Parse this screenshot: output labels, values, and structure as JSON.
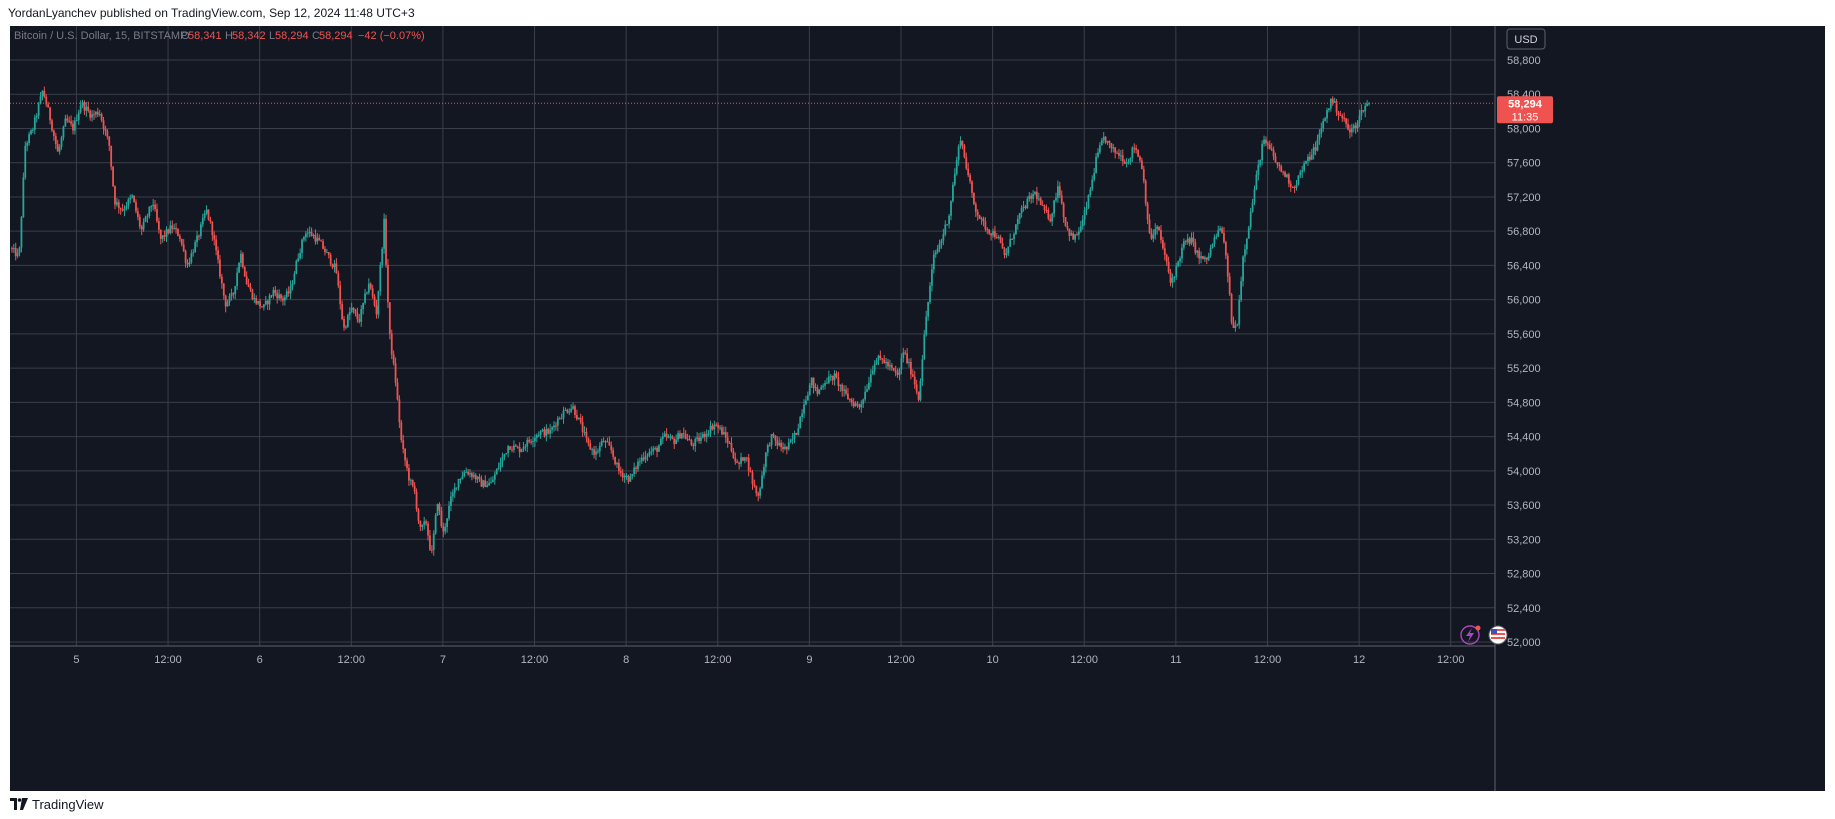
{
  "header": {
    "published_text": "YordanLyanchev published on TradingView.com, Sep 12, 2024 11:48 UTC+3"
  },
  "footer": {
    "brand": "TradingView",
    "logo_icon": "tradingview-logo-icon"
  },
  "chart_data": {
    "type": "candlestick",
    "symbol": "Bitcoin / U.S. Dollar, 15, BITSTAMP",
    "ohlc_legend": {
      "o_label": "O",
      "o_value": "58,341",
      "h_label": "H",
      "h_value": "58,342",
      "l_label": "L",
      "l_value": "58,294",
      "c_label": "C",
      "c_value": "58,294",
      "change": "−42 (−0.07%)"
    },
    "currency": "USD",
    "last_price": 58294,
    "last_price_label": "58,294",
    "countdown": "11:35",
    "y_ticks": [
      58800,
      58400,
      58000,
      57600,
      57200,
      56800,
      56400,
      56000,
      55600,
      55200,
      54800,
      54400,
      54000,
      53600,
      53200,
      52800,
      52400,
      52000
    ],
    "y_tick_labels": [
      "58,800",
      "58,400",
      "58,000",
      "57,600",
      "57,200",
      "56,800",
      "56,400",
      "56,000",
      "55,600",
      "55,200",
      "54,800",
      "54,400",
      "54,000",
      "53,600",
      "53,200",
      "52,800",
      "52,400",
      "52,000"
    ],
    "ylim": [
      51990,
      58800
    ],
    "x_ticks": [
      {
        "t": 24,
        "label": "5"
      },
      {
        "t": 36,
        "label": "12:00"
      },
      {
        "t": 48,
        "label": "6"
      },
      {
        "t": 60,
        "label": "12:00"
      },
      {
        "t": 72,
        "label": "7"
      },
      {
        "t": 84,
        "label": "12:00"
      },
      {
        "t": 96,
        "label": "8"
      },
      {
        "t": 108,
        "label": "12:00"
      },
      {
        "t": 120,
        "label": "9"
      },
      {
        "t": 132,
        "label": "12:00"
      },
      {
        "t": 144,
        "label": "10"
      },
      {
        "t": 156,
        "label": "12:00"
      },
      {
        "t": 168,
        "label": "11"
      },
      {
        "t": 180,
        "label": "12:00"
      },
      {
        "t": 192,
        "label": "12"
      },
      {
        "t": 204,
        "label": "12:00"
      }
    ],
    "x_unit": "hours since Sep 4, 00:00",
    "xlim": [
      15.3,
      209.8
    ],
    "bar_interval_hours": 0.25,
    "colors": {
      "up": "#26a69a",
      "down": "#ef5350",
      "background": "#131722",
      "grid": "#3a3e4b",
      "text": "#b2b5be"
    },
    "price_path": [
      [
        15.3,
        56600
      ],
      [
        16.5,
        56500
      ],
      [
        17.3,
        57800
      ],
      [
        18.3,
        58000
      ],
      [
        19.6,
        58450
      ],
      [
        20.6,
        58100
      ],
      [
        21.6,
        57700
      ],
      [
        22.6,
        58100
      ],
      [
        23.6,
        58000
      ],
      [
        24.6,
        58300
      ],
      [
        26.0,
        58150
      ],
      [
        27.0,
        58200
      ],
      [
        28.3,
        57800
      ],
      [
        29.0,
        57150
      ],
      [
        30.0,
        57050
      ],
      [
        31.3,
        57200
      ],
      [
        32.5,
        56800
      ],
      [
        34.0,
        57150
      ],
      [
        35.0,
        56700
      ],
      [
        36.5,
        56850
      ],
      [
        37.5,
        56750
      ],
      [
        38.5,
        56400
      ],
      [
        40.0,
        56750
      ],
      [
        41.0,
        57050
      ],
      [
        41.8,
        56800
      ],
      [
        42.6,
        56400
      ],
      [
        43.5,
        55950
      ],
      [
        44.5,
        56050
      ],
      [
        45.5,
        56550
      ],
      [
        46.3,
        56200
      ],
      [
        47.3,
        56000
      ],
      [
        48.5,
        55900
      ],
      [
        49.8,
        56100
      ],
      [
        51.0,
        56000
      ],
      [
        52.0,
        56100
      ],
      [
        53.0,
        56500
      ],
      [
        54.0,
        56800
      ],
      [
        55.0,
        56750
      ],
      [
        56.0,
        56650
      ],
      [
        57.0,
        56500
      ],
      [
        58.0,
        56350
      ],
      [
        59.0,
        55650
      ],
      [
        60.0,
        55900
      ],
      [
        61.0,
        55750
      ],
      [
        62.3,
        56200
      ],
      [
        63.3,
        55850
      ],
      [
        64.3,
        56900
      ],
      [
        65.0,
        55600
      ],
      [
        65.8,
        55050
      ],
      [
        66.6,
        54300
      ],
      [
        67.6,
        53900
      ],
      [
        68.3,
        53750
      ],
      [
        69.0,
        53300
      ],
      [
        69.8,
        53400
      ],
      [
        70.5,
        53000
      ],
      [
        71.3,
        53650
      ],
      [
        72.0,
        53250
      ],
      [
        73.0,
        53650
      ],
      [
        74.0,
        53900
      ],
      [
        75.0,
        54000
      ],
      [
        76.0,
        53950
      ],
      [
        77.0,
        53850
      ],
      [
        78.3,
        53850
      ],
      [
        79.3,
        54050
      ],
      [
        80.6,
        54300
      ],
      [
        82.0,
        54250
      ],
      [
        83.3,
        54350
      ],
      [
        84.6,
        54450
      ],
      [
        86.0,
        54450
      ],
      [
        87.0,
        54600
      ],
      [
        88.0,
        54700
      ],
      [
        89.0,
        54750
      ],
      [
        90.0,
        54550
      ],
      [
        91.0,
        54300
      ],
      [
        92.0,
        54200
      ],
      [
        93.0,
        54350
      ],
      [
        94.0,
        54250
      ],
      [
        95.0,
        54000
      ],
      [
        96.5,
        53900
      ],
      [
        97.6,
        54100
      ],
      [
        98.6,
        54200
      ],
      [
        100.0,
        54250
      ],
      [
        101.0,
        54400
      ],
      [
        102.3,
        54350
      ],
      [
        103.3,
        54450
      ],
      [
        104.6,
        54300
      ],
      [
        106.0,
        54400
      ],
      [
        107.6,
        54550
      ],
      [
        108.6,
        54450
      ],
      [
        109.6,
        54300
      ],
      [
        110.6,
        54050
      ],
      [
        111.6,
        54200
      ],
      [
        112.6,
        53850
      ],
      [
        113.3,
        53700
      ],
      [
        114.3,
        54200
      ],
      [
        115.0,
        54400
      ],
      [
        116.0,
        54300
      ],
      [
        117.0,
        54250
      ],
      [
        118.3,
        54450
      ],
      [
        119.3,
        54800
      ],
      [
        120.3,
        55050
      ],
      [
        121.0,
        54900
      ],
      [
        122.0,
        55050
      ],
      [
        123.3,
        55100
      ],
      [
        124.6,
        54900
      ],
      [
        125.6,
        54800
      ],
      [
        126.6,
        54750
      ],
      [
        127.6,
        55000
      ],
      [
        128.6,
        55300
      ],
      [
        129.6,
        55300
      ],
      [
        130.6,
        55200
      ],
      [
        131.6,
        55100
      ],
      [
        132.3,
        55400
      ],
      [
        133.6,
        55100
      ],
      [
        134.3,
        54850
      ],
      [
        135.3,
        55800
      ],
      [
        136.3,
        56500
      ],
      [
        137.3,
        56700
      ],
      [
        138.3,
        57000
      ],
      [
        138.9,
        57400
      ],
      [
        139.8,
        57900
      ],
      [
        140.8,
        57450
      ],
      [
        141.6,
        57100
      ],
      [
        142.6,
        56900
      ],
      [
        143.6,
        56800
      ],
      [
        144.6,
        56750
      ],
      [
        145.6,
        56500
      ],
      [
        146.6,
        56750
      ],
      [
        147.6,
        57000
      ],
      [
        148.6,
        57150
      ],
      [
        149.6,
        57250
      ],
      [
        150.6,
        57050
      ],
      [
        151.6,
        56950
      ],
      [
        152.6,
        57350
      ],
      [
        153.6,
        56850
      ],
      [
        154.6,
        56700
      ],
      [
        155.6,
        56850
      ],
      [
        156.6,
        57200
      ],
      [
        157.6,
        57650
      ],
      [
        158.6,
        57900
      ],
      [
        159.6,
        57750
      ],
      [
        160.6,
        57700
      ],
      [
        161.6,
        57600
      ],
      [
        162.6,
        57800
      ],
      [
        163.6,
        57550
      ],
      [
        164.6,
        56700
      ],
      [
        165.6,
        56850
      ],
      [
        166.6,
        56500
      ],
      [
        167.3,
        56200
      ],
      [
        168.0,
        56350
      ],
      [
        169.0,
        56650
      ],
      [
        170.0,
        56700
      ],
      [
        171.0,
        56500
      ],
      [
        172.0,
        56450
      ],
      [
        173.0,
        56700
      ],
      [
        174.0,
        56850
      ],
      [
        174.8,
        56300
      ],
      [
        175.4,
        55650
      ],
      [
        176.0,
        55700
      ],
      [
        176.8,
        56500
      ],
      [
        177.6,
        56900
      ],
      [
        178.5,
        57400
      ],
      [
        179.4,
        57850
      ],
      [
        180.4,
        57750
      ],
      [
        181.4,
        57550
      ],
      [
        182.4,
        57450
      ],
      [
        183.4,
        57300
      ],
      [
        184.4,
        57500
      ],
      [
        185.4,
        57650
      ],
      [
        186.4,
        57800
      ],
      [
        187.4,
        58100
      ],
      [
        188.4,
        58350
      ],
      [
        189.2,
        58200
      ],
      [
        190.0,
        58100
      ],
      [
        190.8,
        57950
      ],
      [
        191.6,
        58050
      ],
      [
        192.6,
        58250
      ],
      [
        193.4,
        58300
      ]
    ]
  }
}
